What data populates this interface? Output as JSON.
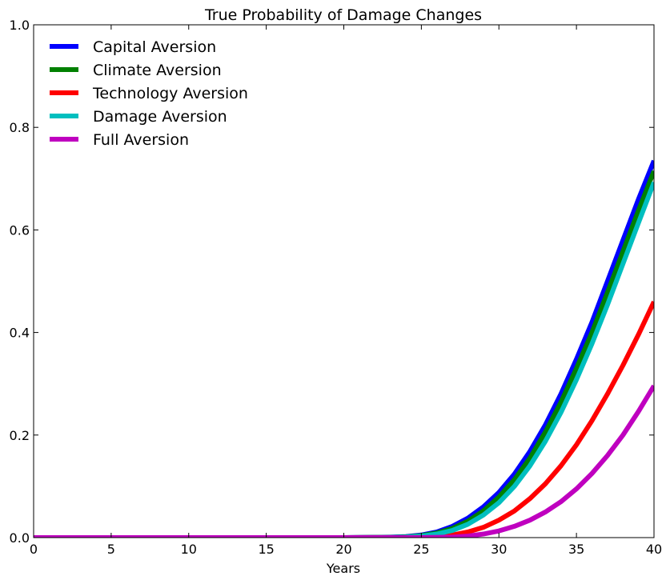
{
  "chart_data": {
    "type": "line",
    "title": "True Probability of Damage Changes",
    "xlabel": "Years",
    "ylabel": "",
    "xlim": [
      0,
      40
    ],
    "ylim": [
      0,
      1.0
    ],
    "xticks": [
      0,
      5,
      10,
      15,
      20,
      25,
      30,
      35,
      40
    ],
    "yticks": [
      0.0,
      0.2,
      0.4,
      0.6,
      0.8,
      1.0
    ],
    "xtick_labels": [
      "0",
      "5",
      "10",
      "15",
      "20",
      "25",
      "30",
      "35",
      "40"
    ],
    "ytick_labels": [
      "0.0",
      "0.2",
      "0.4",
      "0.6",
      "0.8",
      "1.0"
    ],
    "grid": false,
    "legend_position": "top-left",
    "series": [
      {
        "name": "Capital Aversion",
        "color": "#0000ff",
        "x": [
          0,
          5,
          10,
          15,
          20,
          23,
          24,
          25,
          26,
          27,
          28,
          29,
          30,
          31,
          32,
          33,
          34,
          35,
          36,
          37,
          38,
          39,
          40
        ],
        "y": [
          0,
          0,
          0,
          0,
          0,
          0.001,
          0.002,
          0.005,
          0.011,
          0.022,
          0.038,
          0.06,
          0.088,
          0.124,
          0.168,
          0.22,
          0.28,
          0.348,
          0.42,
          0.5,
          0.58,
          0.66,
          0.735
        ]
      },
      {
        "name": "Climate Aversion",
        "color": "#008000",
        "x": [
          0,
          5,
          10,
          15,
          20,
          23,
          24,
          25,
          26,
          27,
          28,
          29,
          30,
          31,
          32,
          33,
          34,
          35,
          36,
          37,
          38,
          39,
          40
        ],
        "y": [
          0,
          0,
          0,
          0,
          0,
          0.0005,
          0.0015,
          0.004,
          0.009,
          0.018,
          0.032,
          0.052,
          0.079,
          0.113,
          0.155,
          0.206,
          0.264,
          0.33,
          0.4,
          0.478,
          0.558,
          0.638,
          0.715
        ]
      },
      {
        "name": "Technology Aversion",
        "color": "#ff0000",
        "x": [
          0,
          5,
          10,
          15,
          20,
          25,
          26,
          27,
          28,
          29,
          30,
          31,
          32,
          33,
          34,
          35,
          36,
          37,
          38,
          39,
          40
        ],
        "y": [
          0,
          0,
          0,
          0,
          0,
          0.0005,
          0.002,
          0.005,
          0.011,
          0.02,
          0.034,
          0.052,
          0.076,
          0.105,
          0.14,
          0.181,
          0.228,
          0.28,
          0.336,
          0.396,
          0.46
        ]
      },
      {
        "name": "Damage Aversion",
        "color": "#00bfbf",
        "x": [
          0,
          5,
          10,
          15,
          20,
          23,
          24,
          25,
          26,
          27,
          28,
          29,
          30,
          31,
          32,
          33,
          34,
          35,
          36,
          37,
          38,
          39,
          40
        ],
        "y": [
          0,
          0,
          0,
          0,
          0,
          0.0003,
          0.001,
          0.003,
          0.007,
          0.014,
          0.026,
          0.044,
          0.068,
          0.1,
          0.14,
          0.188,
          0.244,
          0.308,
          0.378,
          0.454,
          0.534,
          0.614,
          0.693
        ]
      },
      {
        "name": "Full Aversion",
        "color": "#bf00bf",
        "x": [
          0,
          5,
          10,
          15,
          20,
          25,
          27,
          28,
          29,
          30,
          31,
          32,
          33,
          34,
          35,
          36,
          37,
          38,
          39,
          40
        ],
        "y": [
          0,
          0,
          0,
          0,
          0,
          0,
          0.001,
          0.003,
          0.007,
          0.013,
          0.022,
          0.034,
          0.05,
          0.07,
          0.095,
          0.125,
          0.16,
          0.2,
          0.246,
          0.296
        ]
      }
    ]
  }
}
